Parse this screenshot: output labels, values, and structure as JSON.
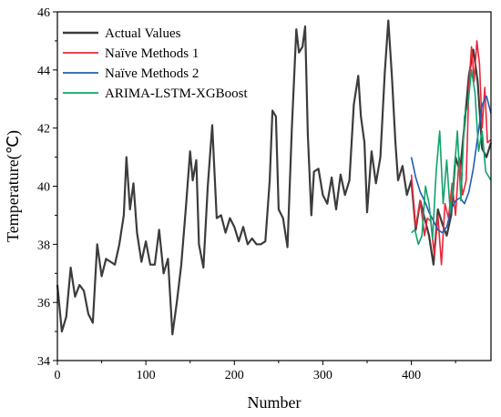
{
  "chart_data": {
    "type": "line",
    "xlabel": "Number",
    "ylabel": "Temperature(℃)",
    "xlim": [
      0,
      490
    ],
    "ylim": [
      34,
      46
    ],
    "x_ticks": [
      0,
      100,
      200,
      300,
      400
    ],
    "y_ticks": [
      34,
      36,
      38,
      40,
      42,
      44,
      46
    ],
    "grid": false,
    "legend_position": "top-left",
    "series": [
      {
        "name": "Actual Values",
        "color": "#3c3c3c",
        "x": [
          0,
          5,
          10,
          15,
          20,
          25,
          30,
          35,
          40,
          45,
          50,
          55,
          60,
          65,
          70,
          75,
          78,
          82,
          86,
          90,
          95,
          100,
          105,
          110,
          115,
          120,
          125,
          130,
          135,
          140,
          145,
          150,
          153,
          157,
          160,
          165,
          170,
          175,
          180,
          185,
          190,
          195,
          200,
          205,
          210,
          215,
          220,
          225,
          230,
          235,
          240,
          243,
          247,
          250,
          255,
          260,
          265,
          270,
          273,
          277,
          280,
          283,
          287,
          290,
          295,
          300,
          305,
          310,
          315,
          320,
          325,
          330,
          335,
          340,
          343,
          347,
          350,
          355,
          360,
          365,
          370,
          374,
          378,
          382,
          385,
          390,
          395,
          400,
          405,
          410,
          415,
          420,
          425,
          430,
          435,
          440,
          445,
          450,
          455,
          460,
          465,
          470,
          475,
          480,
          485,
          490
        ],
        "y": [
          36.6,
          35.0,
          35.5,
          37.2,
          36.2,
          36.6,
          36.4,
          35.6,
          35.3,
          38.0,
          36.9,
          37.5,
          37.4,
          37.3,
          38.0,
          39.0,
          41.0,
          39.2,
          40.1,
          38.4,
          37.4,
          38.1,
          37.3,
          37.3,
          38.5,
          37.0,
          37.5,
          34.9,
          36.0,
          37.3,
          39.2,
          41.2,
          40.2,
          40.9,
          38.0,
          37.2,
          40.0,
          42.1,
          38.9,
          39.0,
          38.4,
          38.9,
          38.6,
          38.1,
          38.6,
          38.0,
          38.2,
          38.0,
          38.0,
          38.1,
          40.2,
          42.6,
          42.4,
          39.2,
          38.9,
          37.9,
          42.0,
          45.4,
          44.6,
          44.8,
          45.5,
          41.8,
          39.0,
          40.5,
          40.6,
          39.7,
          39.4,
          40.3,
          39.2,
          40.4,
          39.7,
          40.2,
          42.8,
          43.8,
          42.4,
          41.5,
          39.1,
          41.2,
          40.1,
          41.0,
          43.9,
          45.7,
          43.8,
          41.5,
          40.2,
          40.7,
          39.7,
          40.2,
          38.5,
          39.5,
          38.9,
          38.3,
          37.3,
          39.2,
          38.7,
          38.3,
          39.0,
          41.0,
          40.5,
          42.1,
          43.8,
          44.7,
          43.6,
          41.3,
          41.0,
          41.5
        ]
      },
      {
        "name": "Naïve Methods 1",
        "color": "#e8283a",
        "x": [
          400,
          405,
          410,
          415,
          418,
          422,
          426,
          430,
          434,
          438,
          442,
          446,
          450,
          454,
          458,
          462,
          465,
          468,
          471,
          474,
          477,
          480,
          483,
          486,
          490
        ],
        "y": [
          40.4,
          38.6,
          39.5,
          38.3,
          38.9,
          38.8,
          37.6,
          39.0,
          37.3,
          39.4,
          38.9,
          40.1,
          39.0,
          41.0,
          39.7,
          40.2,
          43.4,
          44.8,
          43.6,
          45.0,
          44.2,
          42.0,
          43.4,
          41.5,
          41.6
        ]
      },
      {
        "name": "Naïve Methods 2",
        "color": "#1f5fb4",
        "x": [
          400,
          405,
          410,
          415,
          420,
          425,
          430,
          435,
          440,
          445,
          450,
          455,
          460,
          465,
          470,
          475,
          480,
          485,
          490
        ],
        "y": [
          41.0,
          40.3,
          39.8,
          39.5,
          39.1,
          38.8,
          38.5,
          38.4,
          38.6,
          39.2,
          39.5,
          39.6,
          39.4,
          39.8,
          40.6,
          41.7,
          42.8,
          43.1,
          42.5
        ]
      },
      {
        "name": "ARIMA-LSTM-XGBoost",
        "color": "#12a36a",
        "x": [
          400,
          404,
          408,
          412,
          416,
          420,
          424,
          428,
          432,
          436,
          440,
          444,
          448,
          452,
          456,
          460,
          464,
          468,
          472,
          476,
          480,
          484,
          488,
          490
        ],
        "y": [
          38.4,
          38.5,
          38.0,
          38.3,
          40.0,
          39.4,
          38.2,
          40.5,
          41.9,
          39.4,
          40.9,
          39.1,
          40.3,
          41.9,
          39.5,
          42.4,
          42.8,
          44.0,
          43.2,
          41.2,
          41.9,
          40.5,
          40.3,
          40.2
        ]
      }
    ]
  }
}
